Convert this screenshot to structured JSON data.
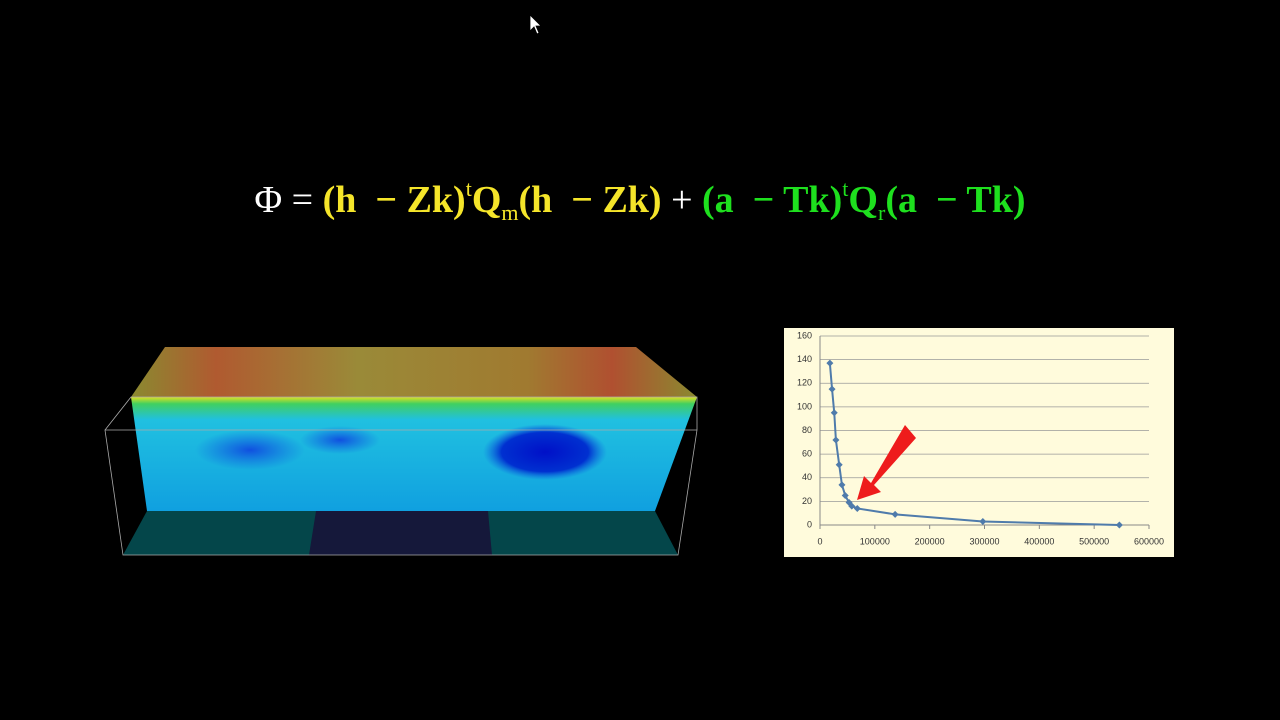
{
  "equation": {
    "parts": [
      "Φ =",
      "(h  − Zk)",
      "t",
      "Q",
      "m",
      "(h  − Zk)",
      "+",
      "(a  − Tk)",
      "t",
      "Q",
      "r",
      "(a  − Tk)"
    ]
  },
  "chart_data": {
    "type": "line",
    "x": [
      18000,
      22000,
      26000,
      29000,
      35000,
      40000,
      46000,
      53000,
      58000,
      68000,
      137000,
      297000,
      546000
    ],
    "series": [
      {
        "color": "#4f7bab",
        "values": [
          137,
          115,
          95,
          72,
          51,
          34,
          25,
          19,
          16,
          14,
          9,
          3,
          0
        ]
      }
    ],
    "xlim": [
      0,
      600000
    ],
    "xticks": [
      0,
      100000,
      200000,
      300000,
      400000,
      500000,
      600000
    ],
    "ylim": [
      0,
      160
    ],
    "yticks": [
      0,
      20,
      40,
      60,
      80,
      100,
      120,
      140,
      160
    ],
    "grid": true
  }
}
